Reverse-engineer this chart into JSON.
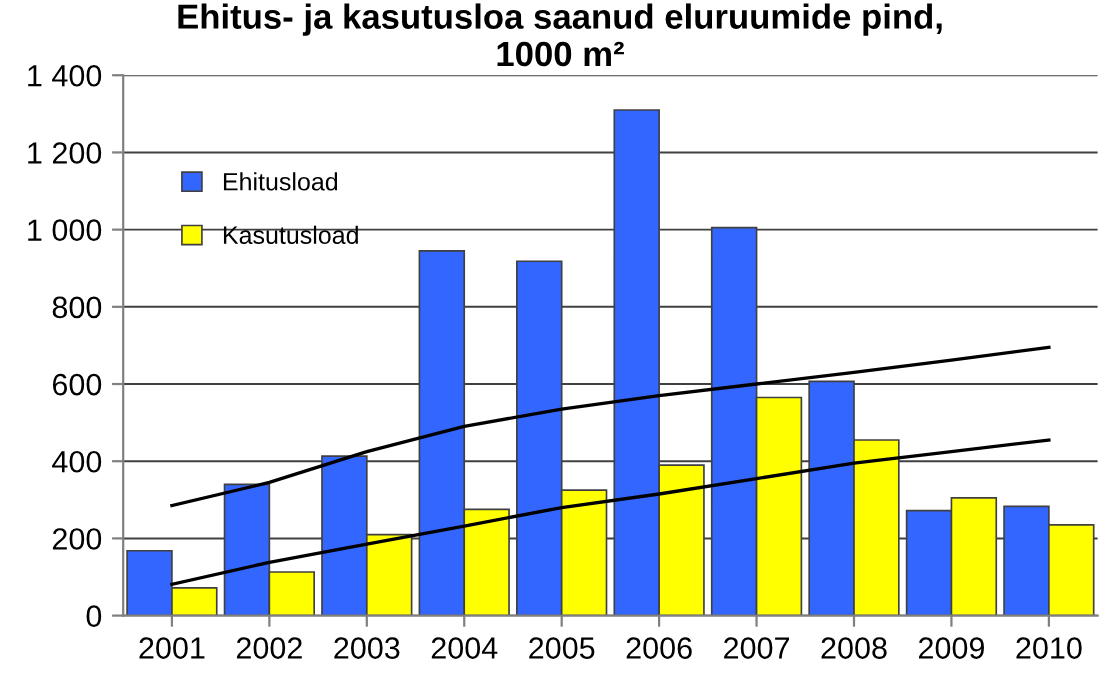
{
  "chart_data": {
    "type": "bar",
    "title": "Ehitus- ja kasutusloa saanud eluruumide pind,\n1000 m²",
    "categories": [
      "2001",
      "2002",
      "2003",
      "2004",
      "2005",
      "2006",
      "2007",
      "2008",
      "2009",
      "2010"
    ],
    "series": [
      {
        "name": "Ehitusload",
        "color": "#3366ff",
        "values": [
          168,
          340,
          413,
          945,
          918,
          1310,
          1005,
          607,
          272,
          283
        ]
      },
      {
        "name": "Kasutusload",
        "color": "#ffff00",
        "values": [
          72,
          113,
          210,
          275,
          325,
          390,
          565,
          455,
          305,
          235
        ]
      },
      {
        "type": "line",
        "color": "#000000",
        "values": [
          285,
          345,
          425,
          490,
          535,
          570,
          600,
          630,
          662,
          695
        ]
      },
      {
        "type": "line",
        "color": "#000000",
        "values": [
          81,
          138,
          185,
          232,
          280,
          315,
          355,
          395,
          425,
          455
        ]
      }
    ],
    "ylim": [
      0,
      1400
    ],
    "yticks": [
      0,
      200,
      400,
      600,
      800,
      {
        "value": 1000,
        "label": "1 000"
      },
      {
        "value": 1200,
        "label": "1 200"
      },
      {
        "value": 1400,
        "label": "1 400"
      }
    ],
    "grid": "y",
    "legend": "upper left",
    "marker": "none",
    "line_style": "solid"
  }
}
